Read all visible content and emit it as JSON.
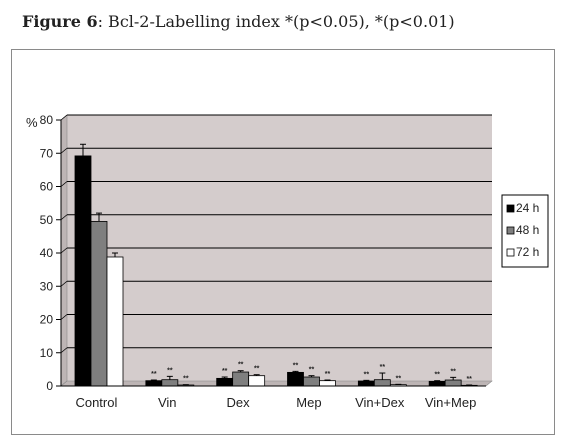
{
  "figure": {
    "caption_label": "Figure 6",
    "caption_text": ": Bcl-2-Labelling index *(p<0.05), *(p<0.01)"
  },
  "colors": {
    "plot_background": "#d4cccc",
    "grid": "#000000",
    "series": [
      "#000000",
      "#7f7f7f",
      "#ffffff"
    ],
    "bar_stroke": "#000000"
  },
  "chart_data": {
    "type": "bar",
    "title": "",
    "xlabel": "",
    "ylabel": "%",
    "ylim": [
      0,
      80
    ],
    "yticks": [
      0,
      10,
      20,
      30,
      40,
      50,
      60,
      70,
      80
    ],
    "grid": true,
    "legend_position": "right",
    "categories": [
      "Control",
      "Vin",
      "Dex",
      "Mep",
      "Vin+Dex",
      "Vin+Mep"
    ],
    "series": [
      {
        "name": "24 h",
        "values": [
          69.2,
          1.6,
          2.3,
          4.1,
          1.5,
          1.4
        ],
        "errors": [
          3.5,
          0.2,
          0.4,
          0.3,
          0.2,
          0.2
        ],
        "significance": [
          "",
          "**",
          "**",
          "**",
          "**",
          "**"
        ]
      },
      {
        "name": "48 h",
        "values": [
          49.5,
          1.9,
          4.2,
          2.7,
          1.9,
          1.8
        ],
        "errors": [
          2.5,
          1.0,
          0.4,
          0.4,
          2.0,
          0.8
        ],
        "significance": [
          "",
          "**",
          "**",
          "**",
          "**",
          "**"
        ]
      },
      {
        "name": "72 h",
        "values": [
          38.8,
          0.3,
          3.1,
          1.6,
          0.4,
          0.2
        ],
        "errors": [
          1.2,
          0.1,
          0.3,
          0.2,
          0.1,
          0.1
        ],
        "significance": [
          "",
          "**",
          "**",
          "**",
          "**",
          "**"
        ]
      }
    ]
  }
}
